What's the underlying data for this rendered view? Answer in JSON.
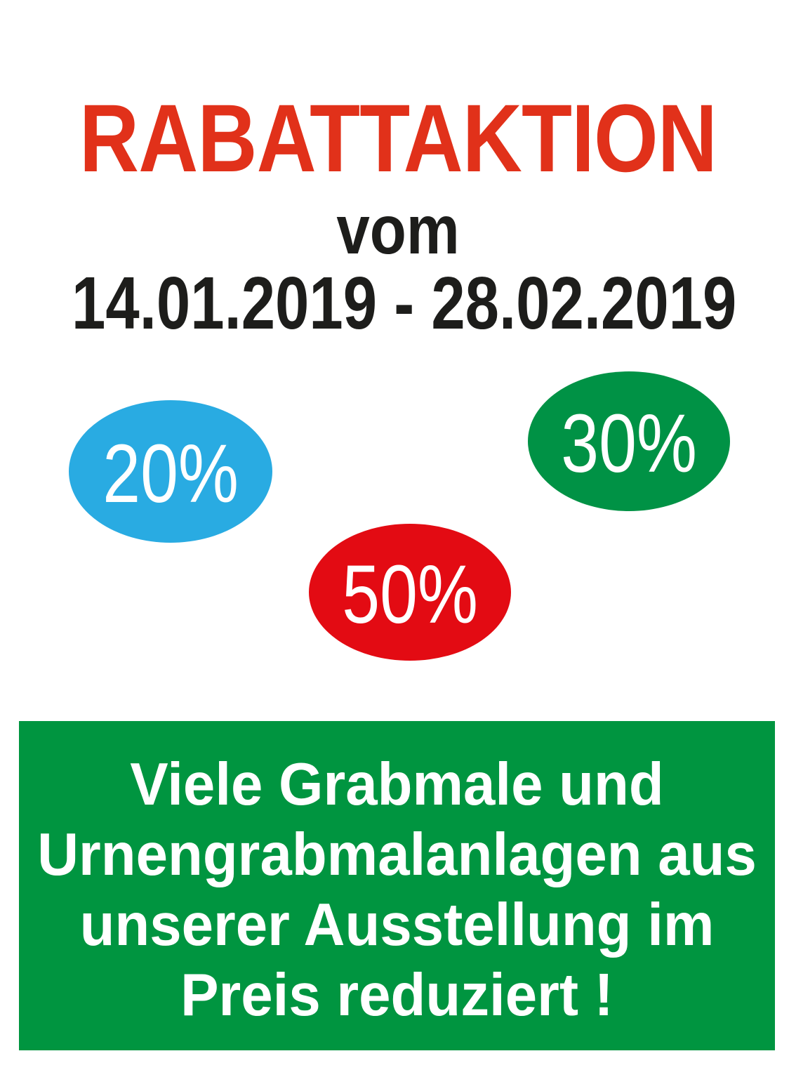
{
  "page": {
    "background": "#ffffff"
  },
  "header": {
    "title": "RABATTAKTION",
    "title_color": "#e1311a",
    "subtitle": "vom",
    "date_range": "14.01.2019 - 28.02.2019",
    "text_color": "#1d1d1b"
  },
  "badges": [
    {
      "label": "20%",
      "color": "#29abe2",
      "text_color": "#ffffff"
    },
    {
      "label": "30%",
      "color": "#009245",
      "text_color": "#ffffff"
    },
    {
      "label": "50%",
      "color": "#e30b13",
      "text_color": "#ffffff"
    }
  ],
  "banner": {
    "background": "#009540",
    "text_color": "#ffffff",
    "lines": [
      "Viele Grabmale und",
      "Urnengrabmalanlagen aus",
      "unserer Ausstellung im",
      "Preis reduziert !"
    ]
  }
}
